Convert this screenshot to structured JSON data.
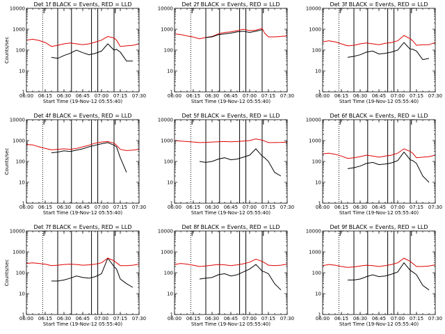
{
  "figure": {
    "x_tick_labels": [
      "06:00",
      "06:15",
      "06:30",
      "06:45",
      "07:00",
      "07:15",
      "07:30"
    ],
    "y_tick_labels": [
      "1",
      "10",
      "100",
      "1000",
      "10000"
    ],
    "vertical_markers": {
      "dotted": [
        "06:13",
        "07:10"
      ],
      "solid": [
        "06:25",
        "06:36",
        "06:52",
        "06:57",
        "07:10"
      ],
      "bracket": [
        "06:14",
        "07:11"
      ]
    },
    "colors": {
      "events": "#000000",
      "lld": "#e00000"
    }
  },
  "chart_data": [
    {
      "type": "line",
      "title": "Det 1f BLACK = Events, RED = LLD",
      "xlabel": "Start Time (19-Nov-12 05:55:40)",
      "ylabel": "Counts/sec",
      "y_scale": "log",
      "xlim": [
        "06:00",
        "07:30"
      ],
      "ylim": [
        1,
        10000
      ],
      "x": [
        "06:00",
        "06:05",
        "06:10",
        "06:15",
        "06:20",
        "06:25",
        "06:30",
        "06:35",
        "06:40",
        "06:45",
        "06:50",
        "06:55",
        "07:00",
        "07:05",
        "07:10",
        "07:12",
        "07:15",
        "07:20",
        "07:25",
        "07:30"
      ],
      "series": [
        {
          "name": "Events",
          "values": [
            null,
            null,
            null,
            null,
            45,
            40,
            55,
            70,
            100,
            75,
            60,
            70,
            90,
            200,
            100,
            110,
            80,
            30,
            30,
            null
          ]
        },
        {
          "name": "LLD",
          "values": [
            300,
            330,
            290,
            230,
            150,
            170,
            200,
            220,
            200,
            180,
            200,
            240,
            300,
            450,
            380,
            300,
            150,
            160,
            170,
            200
          ]
        }
      ]
    },
    {
      "type": "line",
      "title": "Det 2f BLACK = Events, RED = LLD",
      "xlabel": "Start Time (19-Nov-12 05:55:40)",
      "ylabel": "",
      "y_scale": "log",
      "xlim": [
        "06:00",
        "07:30"
      ],
      "ylim": [
        1,
        10000
      ],
      "x": [
        "06:00",
        "06:05",
        "06:10",
        "06:15",
        "06:20",
        "06:25",
        "06:30",
        "06:35",
        "06:40",
        "06:45",
        "06:50",
        "06:55",
        "07:00",
        "07:05",
        "07:10",
        "07:12",
        "07:15",
        "07:20",
        "07:25",
        "07:30"
      ],
      "series": [
        {
          "name": "Events",
          "values": [
            null,
            null,
            null,
            null,
            null,
            400,
            430,
            550,
            600,
            650,
            750,
            800,
            700,
            800,
            950,
            null,
            null,
            null,
            null,
            null
          ],
          "note_hidden": true
        },
        {
          "name": "LLD",
          "values": [
            600,
            560,
            480,
            420,
            350,
            400,
            450,
            600,
            700,
            750,
            850,
            1000,
            850,
            900,
            1100,
            650,
            430,
            430,
            450,
            480
          ]
        }
      ]
    },
    {
      "type": "line",
      "title": "Det 3f BLACK = Events, RED = LLD",
      "xlabel": "Start Time (19-Nov-12 05:55:40)",
      "ylabel": "",
      "y_scale": "log",
      "xlim": [
        "06:00",
        "07:30"
      ],
      "ylim": [
        1,
        10000
      ],
      "x": [
        "06:00",
        "06:05",
        "06:10",
        "06:15",
        "06:20",
        "06:25",
        "06:30",
        "06:35",
        "06:40",
        "06:45",
        "06:50",
        "06:55",
        "07:00",
        "07:05",
        "07:10",
        "07:12",
        "07:15",
        "07:20",
        "07:25",
        "07:30"
      ],
      "series": [
        {
          "name": "Events",
          "values": [
            null,
            null,
            null,
            null,
            45,
            50,
            60,
            80,
            90,
            65,
            70,
            80,
            100,
            230,
            110,
            110,
            90,
            35,
            40,
            null
          ]
        },
        {
          "name": "LLD",
          "values": [
            250,
            280,
            250,
            200,
            160,
            170,
            200,
            220,
            200,
            180,
            210,
            230,
            280,
            500,
            350,
            280,
            170,
            180,
            180,
            230
          ]
        }
      ]
    },
    {
      "type": "line",
      "title": "Det 4f BLACK = Events, RED = LLD",
      "xlabel": "Start Time (19-Nov-12 05:55:40)",
      "ylabel": "Counts/sec",
      "y_scale": "log",
      "xlim": [
        "06:00",
        "07:30"
      ],
      "ylim": [
        1,
        10000
      ],
      "x": [
        "06:00",
        "06:05",
        "06:10",
        "06:15",
        "06:20",
        "06:25",
        "06:30",
        "06:35",
        "06:40",
        "06:45",
        "06:50",
        "06:55",
        "07:00",
        "07:05",
        "07:10",
        "07:12",
        "07:15",
        "07:20",
        "07:25",
        "07:30"
      ],
      "series": [
        {
          "name": "Events",
          "values": [
            null,
            null,
            null,
            null,
            260,
            280,
            320,
            300,
            350,
            400,
            500,
            600,
            700,
            800,
            600,
            500,
            150,
            30,
            null,
            null
          ]
        },
        {
          "name": "LLD",
          "values": [
            650,
            620,
            500,
            420,
            360,
            380,
            400,
            380,
            420,
            500,
            600,
            750,
            850,
            900,
            750,
            600,
            380,
            330,
            350,
            380
          ]
        }
      ]
    },
    {
      "type": "line",
      "title": "Det 5f BLACK = Events, RED = LLD",
      "xlabel": "Start Time (19-Nov-12 05:55:40)",
      "ylabel": "",
      "y_scale": "log",
      "xlim": [
        "06:00",
        "07:30"
      ],
      "ylim": [
        1,
        10000
      ],
      "x": [
        "06:00",
        "06:05",
        "06:10",
        "06:15",
        "06:20",
        "06:25",
        "06:30",
        "06:35",
        "06:40",
        "06:45",
        "06:50",
        "06:55",
        "07:00",
        "07:05",
        "07:10",
        "07:12",
        "07:15",
        "07:20",
        "07:25",
        "07:30"
      ],
      "series": [
        {
          "name": "Events",
          "values": [
            null,
            null,
            null,
            null,
            100,
            90,
            100,
            130,
            150,
            120,
            130,
            160,
            200,
            400,
            180,
            150,
            100,
            30,
            20,
            null
          ]
        },
        {
          "name": "LLD",
          "values": [
            1000,
            950,
            900,
            850,
            800,
            820,
            850,
            880,
            900,
            880,
            900,
            950,
            1000,
            1200,
            1050,
            950,
            800,
            800,
            820,
            850
          ]
        }
      ]
    },
    {
      "type": "line",
      "title": "Det 6f BLACK = Events, RED = LLD",
      "xlabel": "Start Time (19-Nov-12 05:55:40)",
      "ylabel": "",
      "y_scale": "log",
      "xlim": [
        "06:00",
        "07:30"
      ],
      "ylim": [
        1,
        10000
      ],
      "x": [
        "06:00",
        "06:05",
        "06:10",
        "06:15",
        "06:20",
        "06:25",
        "06:30",
        "06:35",
        "06:40",
        "06:45",
        "06:50",
        "06:55",
        "07:00",
        "07:05",
        "07:10",
        "07:12",
        "07:15",
        "07:20",
        "07:25",
        "07:30"
      ],
      "series": [
        {
          "name": "Events",
          "values": [
            null,
            null,
            null,
            null,
            45,
            50,
            60,
            80,
            90,
            70,
            75,
            85,
            110,
            280,
            120,
            110,
            80,
            20,
            10,
            null
          ]
        },
        {
          "name": "LLD",
          "values": [
            230,
            250,
            220,
            180,
            140,
            150,
            170,
            200,
            180,
            160,
            180,
            200,
            250,
            400,
            300,
            250,
            150,
            160,
            170,
            200
          ]
        }
      ]
    },
    {
      "type": "line",
      "title": "Det 7f BLACK = Events, RED = LLD",
      "xlabel": "Start Time (19-Nov-12 05:55:40)",
      "ylabel": "Counts/sec",
      "y_scale": "log",
      "xlim": [
        "06:00",
        "07:30"
      ],
      "ylim": [
        1,
        10000
      ],
      "x": [
        "06:00",
        "06:05",
        "06:10",
        "06:15",
        "06:20",
        "06:25",
        "06:30",
        "06:35",
        "06:40",
        "06:45",
        "06:50",
        "06:55",
        "07:00",
        "07:05",
        "07:10",
        "07:12",
        "07:15",
        "07:20",
        "07:25",
        "07:30"
      ],
      "series": [
        {
          "name": "Events",
          "values": [
            null,
            null,
            null,
            null,
            40,
            40,
            45,
            55,
            70,
            60,
            55,
            65,
            90,
            500,
            200,
            150,
            50,
            30,
            20,
            null
          ]
        },
        {
          "name": "LLD",
          "values": [
            280,
            300,
            280,
            260,
            220,
            230,
            250,
            260,
            250,
            230,
            240,
            260,
            300,
            500,
            380,
            300,
            220,
            220,
            230,
            260
          ]
        }
      ]
    },
    {
      "type": "line",
      "title": "Det 8f BLACK = Events, RED = LLD",
      "xlabel": "Start Time (19-Nov-12 05:55:40)",
      "ylabel": "",
      "y_scale": "log",
      "xlim": [
        "06:00",
        "07:30"
      ],
      "ylim": [
        1,
        10000
      ],
      "x": [
        "06:00",
        "06:05",
        "06:10",
        "06:15",
        "06:20",
        "06:25",
        "06:30",
        "06:35",
        "06:40",
        "06:45",
        "06:50",
        "06:55",
        "07:00",
        "07:05",
        "07:10",
        "07:12",
        "07:15",
        "07:20",
        "07:25",
        "07:30"
      ],
      "series": [
        {
          "name": "Events",
          "values": [
            null,
            null,
            null,
            null,
            50,
            55,
            60,
            80,
            90,
            70,
            80,
            110,
            150,
            250,
            120,
            110,
            90,
            30,
            15,
            null
          ]
        },
        {
          "name": "LLD",
          "values": [
            250,
            280,
            260,
            230,
            200,
            210,
            230,
            250,
            240,
            220,
            240,
            270,
            320,
            450,
            350,
            300,
            230,
            220,
            230,
            260
          ]
        }
      ]
    },
    {
      "type": "line",
      "title": "Det 9f BLACK = Events, RED = LLD",
      "xlabel": "Start Time (19-Nov-12 05:55:40)",
      "ylabel": "",
      "y_scale": "log",
      "xlim": [
        "06:00",
        "07:30"
      ],
      "ylim": [
        1,
        10000
      ],
      "x": [
        "06:00",
        "06:05",
        "06:10",
        "06:15",
        "06:20",
        "06:25",
        "06:30",
        "06:35",
        "06:40",
        "06:45",
        "06:50",
        "06:55",
        "07:00",
        "07:05",
        "07:10",
        "07:12",
        "07:15",
        "07:20",
        "07:25",
        "07:30"
      ],
      "series": [
        {
          "name": "Events",
          "values": [
            null,
            null,
            null,
            null,
            45,
            45,
            50,
            65,
            80,
            65,
            70,
            85,
            110,
            300,
            130,
            110,
            80,
            25,
            15,
            null
          ]
        },
        {
          "name": "LLD",
          "values": [
            220,
            250,
            230,
            200,
            180,
            190,
            210,
            230,
            220,
            200,
            220,
            250,
            300,
            500,
            350,
            280,
            200,
            200,
            210,
            240
          ]
        }
      ]
    }
  ]
}
